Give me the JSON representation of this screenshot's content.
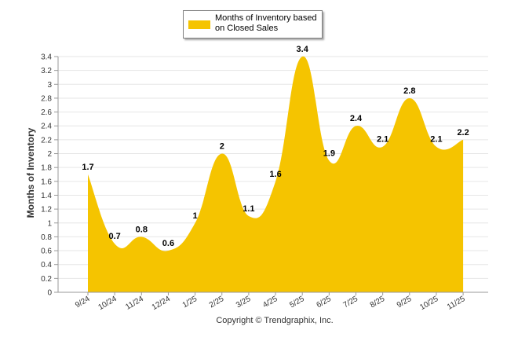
{
  "chart_data": {
    "type": "area",
    "title": "",
    "ylabel": "Months of Inventory",
    "xlabel": "",
    "ylim": [
      0,
      3.4
    ],
    "yticks": [
      "0",
      "0.2",
      "0.4",
      "0.6",
      "0.8",
      "1",
      "1.2",
      "1.4",
      "1.6",
      "1.8",
      "2",
      "2.2",
      "2.4",
      "2.6",
      "2.8",
      "3",
      "3.2",
      "3.4"
    ],
    "categories": [
      "9/24",
      "10/24",
      "11/24",
      "12/24",
      "1/25",
      "2/25",
      "3/25",
      "4/25",
      "5/25",
      "6/25",
      "7/25",
      "8/25",
      "9/25",
      "10/25",
      "11/25"
    ],
    "series": [
      {
        "name": "Months of Inventory based on Closed Sales",
        "color": "#f5c400",
        "values": [
          1.7,
          0.7,
          0.8,
          0.6,
          1,
          2,
          1.1,
          1.6,
          3.4,
          1.9,
          2.4,
          2.1,
          2.8,
          2.1,
          2.2
        ],
        "labels": [
          "1.7",
          "0.7",
          "0.8",
          "0.6",
          "1",
          "2",
          "1.1",
          "1.6",
          "3.4",
          "1.9",
          "2.4",
          "2.1",
          "2.8",
          "2.1",
          "2.2"
        ]
      }
    ],
    "legend": {
      "position": "top-center",
      "label_line1": "Months of Inventory based",
      "label_line2": "on Closed Sales"
    },
    "grid": true
  },
  "footer": {
    "copyright": "Copyright © Trendgraphix, Inc."
  }
}
